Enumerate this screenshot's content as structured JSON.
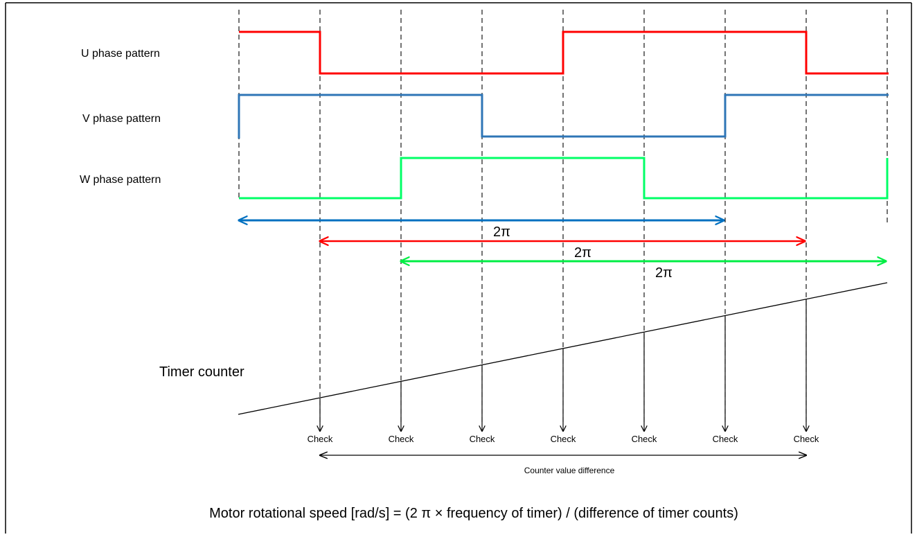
{
  "labels": {
    "u_phase": "U phase pattern",
    "v_phase": "V phase pattern",
    "w_phase": "W phase pattern",
    "timer_counter": "Timer counter",
    "counter_difference": "Counter value difference",
    "formula": "Motor rotational speed [rad/s] = (2 π × frequency of timer) / (difference of timer counts)"
  },
  "period_labels": [
    "2π",
    "2π",
    "2π"
  ],
  "check_label": "Check",
  "colors": {
    "u_phase": "#ff0000",
    "v_phase": "#2e75b6",
    "w_phase": "#00ff66",
    "u_arrow": "#ff0000",
    "v_arrow": "#0070c0",
    "w_arrow": "#00ee44",
    "ink": "#000000",
    "border": "#000000"
  }
}
